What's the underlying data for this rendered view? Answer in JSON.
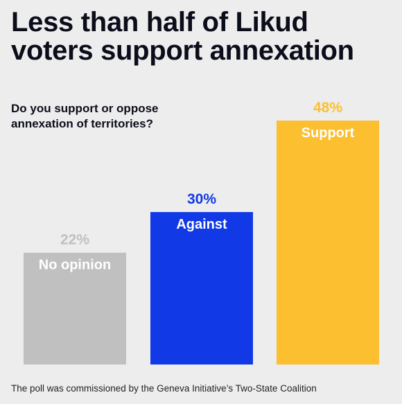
{
  "title": "Less than half of Likud voters support annexation",
  "subtitle": "Do you support or oppose annexation of territories?",
  "footer": "The poll was commissioned by the Geneva Initiative’s Two-State Coalition",
  "chart_data": {
    "type": "bar",
    "title": "Less than half of Likud voters support annexation",
    "subtitle": "Do you support or oppose annexation of territories?",
    "categories": [
      "No opinion",
      "Against",
      "Support"
    ],
    "values": [
      22,
      30,
      48
    ],
    "value_labels": [
      "22%",
      "30%",
      "48%"
    ],
    "unit": "%",
    "colors": [
      "#c0c0c0",
      "#1139e6",
      "#fbbf2f"
    ],
    "label_colors": [
      "#c0c0c0",
      "#1139e6",
      "#fbbf2f"
    ],
    "xlabel": "",
    "ylabel": "",
    "ylim": [
      0,
      48
    ],
    "grid": false,
    "legend": "none"
  }
}
